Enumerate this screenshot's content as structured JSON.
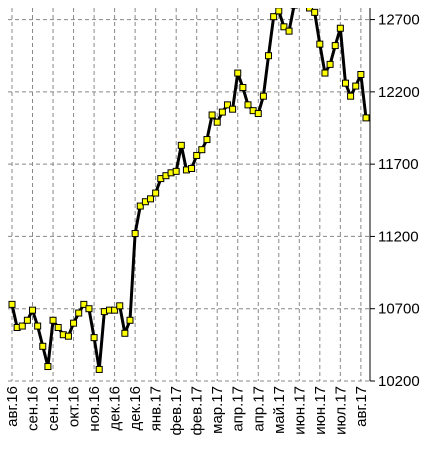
{
  "chart_data": {
    "type": "line",
    "categories": [
      "авг.16",
      null,
      null,
      null,
      "сен.16",
      null,
      null,
      null,
      "сен.16",
      null,
      null,
      null,
      "окт.16",
      null,
      null,
      null,
      "ноя.16",
      null,
      null,
      null,
      "дек.16",
      null,
      null,
      null,
      "дек.16",
      null,
      null,
      null,
      "янв.17",
      null,
      null,
      null,
      "фев.17",
      null,
      null,
      null,
      "фев.17",
      null,
      null,
      null,
      "мар.17",
      null,
      null,
      null,
      "апр.17",
      null,
      null,
      null,
      "апр.17",
      null,
      null,
      null,
      "май.17",
      null,
      null,
      null,
      "июн.17",
      null,
      null,
      null,
      "июн.17",
      null,
      null,
      null,
      "июл.17",
      null,
      null,
      null,
      "авг.17",
      null
    ],
    "series": [
      {
        "color": "#000000",
        "marker_color": "#ffff00",
        "values": [
          10730,
          10570,
          10580,
          10620,
          10690,
          10580,
          10440,
          10300,
          10620,
          10570,
          10520,
          10510,
          10600,
          10670,
          10730,
          10700,
          10500,
          10280,
          10680,
          10690,
          10690,
          10720,
          10530,
          10620,
          11220,
          11410,
          11440,
          11460,
          11500,
          11600,
          11620,
          11640,
          11650,
          11830,
          11660,
          11670,
          11760,
          11800,
          11870,
          12040,
          11990,
          12060,
          12110,
          12080,
          12330,
          12230,
          12110,
          12070,
          12050,
          12170,
          12450,
          12720,
          12760,
          12650,
          12620,
          12800,
          12850,
          12900,
          12780,
          12750,
          12530,
          12330,
          12390,
          12520,
          12640,
          12260,
          12170,
          12240,
          12320,
          12020
        ]
      }
    ],
    "ylim": [
      10200,
      12780
    ],
    "yticks": [
      10200,
      10700,
      11200,
      11700,
      12200,
      12700
    ],
    "grid": true
  }
}
